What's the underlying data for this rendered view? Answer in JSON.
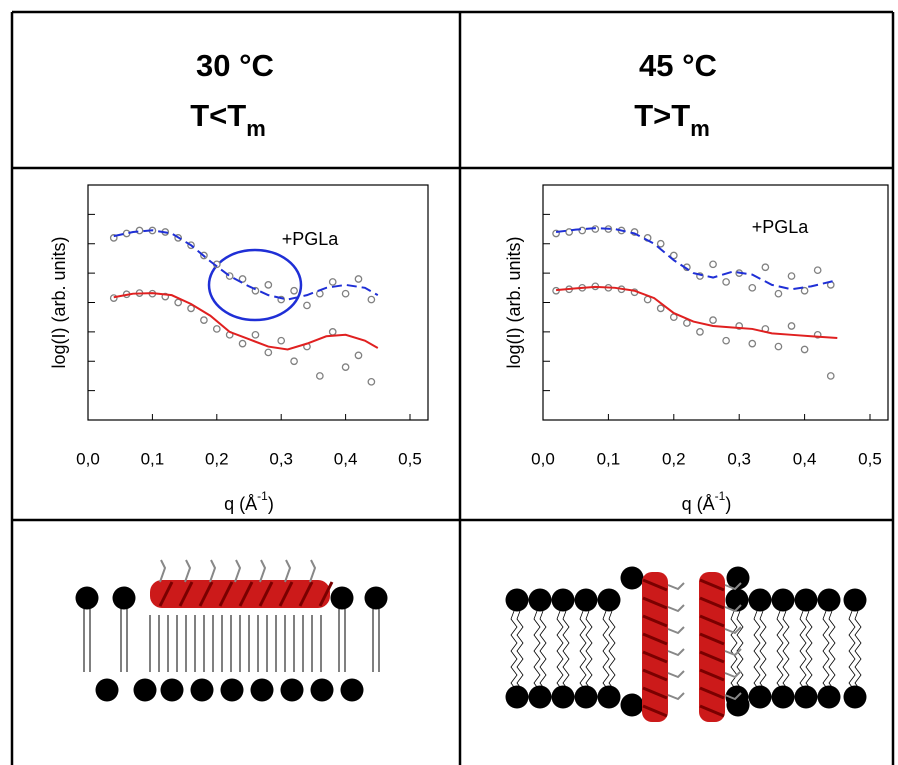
{
  "table": {
    "columns": [
      {
        "temperature": "30 °C",
        "condition": "T<T",
        "condition_sub": "m"
      },
      {
        "temperature": "45 °C",
        "condition": "T>T",
        "condition_sub": "m"
      }
    ]
  },
  "chart_data": [
    {
      "type": "scatter",
      "ylabel": "log(I) (arb. units)",
      "xlabel": "q (Å",
      "xlabel_sup": "-1",
      "xlabel_end": ")",
      "annotation": "+PGLa",
      "xlim": [
        0,
        0.5
      ],
      "xticks": [
        {
          "value": 0,
          "label": "0,0"
        },
        {
          "value": 0.1,
          "label": "0,1"
        },
        {
          "value": 0.2,
          "label": "0,2"
        },
        {
          "value": 0.3,
          "label": "0,3"
        },
        {
          "value": 0.4,
          "label": "0,4"
        },
        {
          "value": 0.5,
          "label": "0,5"
        }
      ],
      "ylim": [
        0,
        8
      ],
      "yticks": [
        1,
        2,
        3,
        4,
        5,
        6,
        7
      ],
      "series": [
        {
          "mode": "markers",
          "color": "#808080",
          "x": [
            0.04,
            0.06,
            0.08,
            0.1,
            0.12,
            0.14,
            0.16,
            0.18,
            0.2,
            0.22,
            0.24,
            0.26,
            0.28,
            0.3,
            0.32,
            0.34,
            0.36,
            0.38,
            0.4,
            0.42,
            0.44
          ],
          "values": [
            6.2,
            6.35,
            6.45,
            6.45,
            6.4,
            6.2,
            5.95,
            5.6,
            5.3,
            4.9,
            4.8,
            4.4,
            4.6,
            4.1,
            4.4,
            3.9,
            4.3,
            4.7,
            4.3,
            4.8,
            4.1
          ]
        },
        {
          "mode": "line",
          "dash": true,
          "color": "#1f2fd6",
          "x": [
            0.04,
            0.07,
            0.1,
            0.13,
            0.16,
            0.19,
            0.22,
            0.25,
            0.28,
            0.31,
            0.34,
            0.37,
            0.4,
            0.43,
            0.45
          ],
          "values": [
            6.26,
            6.4,
            6.46,
            6.35,
            5.95,
            5.4,
            4.9,
            4.55,
            4.25,
            4.1,
            4.25,
            4.5,
            4.6,
            4.5,
            4.25
          ]
        },
        {
          "mode": "markers",
          "color": "#808080",
          "x": [
            0.04,
            0.06,
            0.08,
            0.1,
            0.12,
            0.14,
            0.16,
            0.18,
            0.2,
            0.22,
            0.24,
            0.26,
            0.28,
            0.3,
            0.32,
            0.34,
            0.36,
            0.38,
            0.4,
            0.42,
            0.44
          ],
          "values": [
            4.15,
            4.28,
            4.32,
            4.3,
            4.2,
            4.0,
            3.8,
            3.4,
            3.1,
            2.9,
            2.6,
            2.9,
            2.3,
            2.7,
            2.0,
            2.5,
            1.5,
            3.0,
            1.8,
            2.2,
            1.3
          ]
        },
        {
          "mode": "line",
          "dash": false,
          "color": "#e02020",
          "x": [
            0.04,
            0.07,
            0.1,
            0.13,
            0.16,
            0.19,
            0.22,
            0.25,
            0.28,
            0.31,
            0.34,
            0.37,
            0.4,
            0.43,
            0.45
          ],
          "values": [
            4.18,
            4.3,
            4.32,
            4.25,
            3.95,
            3.55,
            3.0,
            2.75,
            2.5,
            2.4,
            2.6,
            2.85,
            2.9,
            2.7,
            2.45
          ]
        }
      ]
    },
    {
      "type": "scatter",
      "ylabel": "log(I) (arb. units)",
      "xlabel": "q (Å",
      "xlabel_sup": "-1",
      "xlabel_end": ")",
      "annotation": "+PGLa",
      "xlim": [
        0,
        0.5
      ],
      "xticks": [
        {
          "value": 0,
          "label": "0,0"
        },
        {
          "value": 0.1,
          "label": "0,1"
        },
        {
          "value": 0.2,
          "label": "0,2"
        },
        {
          "value": 0.3,
          "label": "0,3"
        },
        {
          "value": 0.4,
          "label": "0,4"
        },
        {
          "value": 0.5,
          "label": "0,5"
        }
      ],
      "ylim": [
        0,
        8
      ],
      "yticks": [
        1,
        2,
        3,
        4,
        5,
        6,
        7
      ],
      "series": [
        {
          "mode": "markers",
          "color": "#808080",
          "x": [
            0.02,
            0.04,
            0.06,
            0.08,
            0.1,
            0.12,
            0.14,
            0.16,
            0.18,
            0.2,
            0.22,
            0.24,
            0.26,
            0.28,
            0.3,
            0.32,
            0.34,
            0.36,
            0.38,
            0.4,
            0.42,
            0.44
          ],
          "values": [
            6.35,
            6.4,
            6.45,
            6.5,
            6.5,
            6.45,
            6.4,
            6.2,
            6.0,
            5.6,
            5.2,
            4.9,
            5.3,
            4.7,
            5.0,
            4.5,
            5.2,
            4.3,
            4.9,
            4.4,
            5.1,
            4.6
          ]
        },
        {
          "mode": "line",
          "dash": true,
          "color": "#1f2fd6",
          "x": [
            0.02,
            0.05,
            0.08,
            0.11,
            0.14,
            0.17,
            0.2,
            0.23,
            0.26,
            0.29,
            0.32,
            0.35,
            0.38,
            0.41,
            0.45
          ],
          "values": [
            6.4,
            6.48,
            6.53,
            6.5,
            6.35,
            6.0,
            5.44,
            5.0,
            4.85,
            5.05,
            4.95,
            4.6,
            4.45,
            4.55,
            4.76
          ]
        },
        {
          "mode": "markers",
          "color": "#808080",
          "x": [
            0.02,
            0.04,
            0.06,
            0.08,
            0.1,
            0.12,
            0.14,
            0.16,
            0.18,
            0.2,
            0.22,
            0.24,
            0.26,
            0.28,
            0.3,
            0.32,
            0.34,
            0.36,
            0.38,
            0.4,
            0.42,
            0.44
          ],
          "values": [
            4.4,
            4.45,
            4.5,
            4.55,
            4.5,
            4.45,
            4.35,
            4.1,
            3.8,
            3.5,
            3.3,
            3.0,
            3.4,
            2.7,
            3.2,
            2.6,
            3.1,
            2.5,
            3.2,
            2.4,
            2.9,
            1.5
          ]
        },
        {
          "mode": "line",
          "dash": false,
          "color": "#e02020",
          "x": [
            0.02,
            0.05,
            0.08,
            0.11,
            0.14,
            0.17,
            0.2,
            0.23,
            0.26,
            0.29,
            0.32,
            0.35,
            0.38,
            0.41,
            0.45
          ],
          "values": [
            4.42,
            4.48,
            4.53,
            4.5,
            4.4,
            4.15,
            3.64,
            3.35,
            3.2,
            3.15,
            3.1,
            2.95,
            2.9,
            2.85,
            2.79
          ]
        }
      ]
    }
  ]
}
